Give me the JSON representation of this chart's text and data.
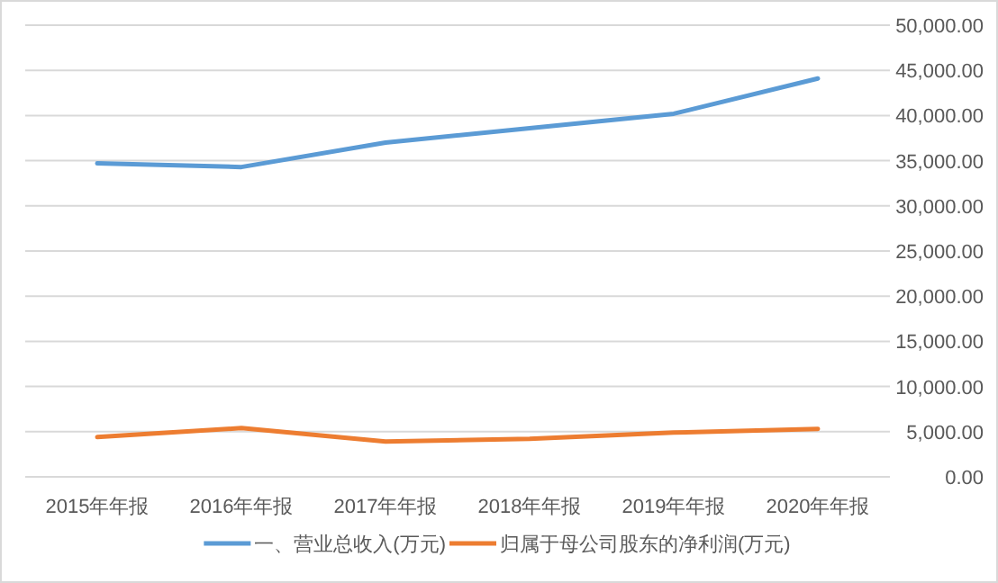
{
  "chart_data": {
    "type": "line",
    "categories": [
      "2015年年报",
      "2016年年报",
      "2017年年报",
      "2018年年报",
      "2019年年报",
      "2020年年报"
    ],
    "series": [
      {
        "name": "一、营业总收入(万元)",
        "color": "#5b9bd5",
        "values": [
          34700,
          34300,
          37000,
          38600,
          40200,
          44100
        ]
      },
      {
        "name": "归属于母公司股东的净利润(万元)",
        "color": "#ed7d31",
        "values": [
          4400,
          5400,
          3900,
          4200,
          4900,
          5300
        ]
      }
    ],
    "ylim": [
      0,
      50000
    ],
    "yticks": [
      {
        "value": 0,
        "label": "0.00"
      },
      {
        "value": 5000,
        "label": "5,000.00"
      },
      {
        "value": 10000,
        "label": "10,000.00"
      },
      {
        "value": 15000,
        "label": "15,000.00"
      },
      {
        "value": 20000,
        "label": "20,000.00"
      },
      {
        "value": 25000,
        "label": "25,000.00"
      },
      {
        "value": 30000,
        "label": "30,000.00"
      },
      {
        "value": 35000,
        "label": "35,000.00"
      },
      {
        "value": 40000,
        "label": "40,000.00"
      },
      {
        "value": 45000,
        "label": "45,000.00"
      },
      {
        "value": 50000,
        "label": "50,000.00"
      }
    ],
    "grid": "y",
    "legend": "bottom",
    "marker": "none",
    "line_style": "solid"
  }
}
